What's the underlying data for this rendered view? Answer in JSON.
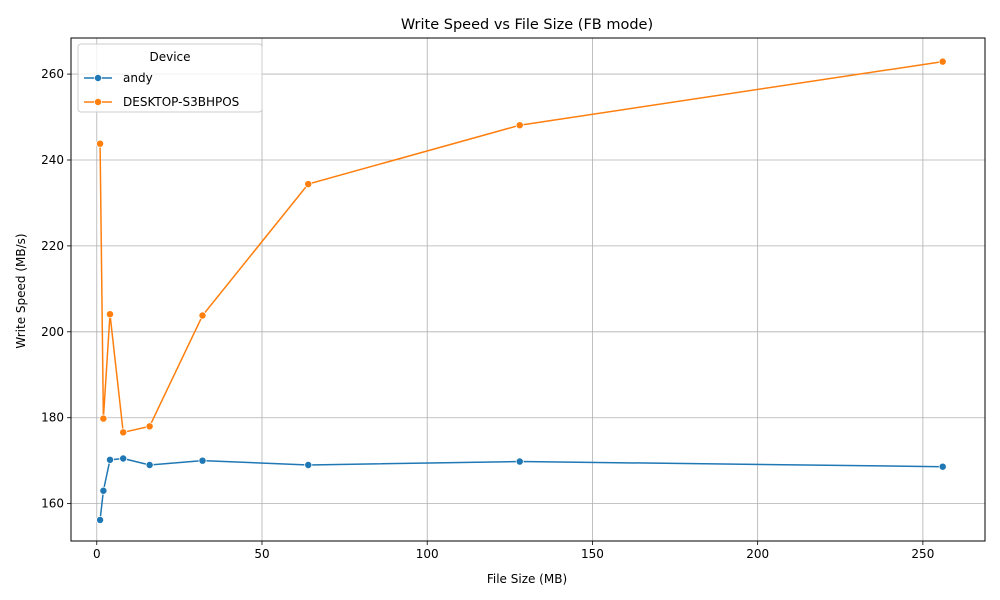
{
  "chart_data": {
    "type": "line",
    "title": "Write Speed vs File Size (FB mode)",
    "xlabel": "File Size (MB)",
    "ylabel": "Write Speed (MB/s)",
    "xlim": [
      -7.8,
      268.8
    ],
    "ylim": [
      151.3,
      268.4
    ],
    "xticks": [
      0,
      50,
      100,
      150,
      200,
      250
    ],
    "yticks": [
      160,
      180,
      200,
      220,
      240,
      260
    ],
    "grid": true,
    "legend": {
      "title": "Device",
      "position": "top-left"
    },
    "series": [
      {
        "name": "andy",
        "color": "#1f77b4",
        "x": [
          1,
          2,
          4,
          8,
          16,
          32,
          64,
          128,
          256
        ],
        "y": [
          156.2,
          163.0,
          170.2,
          170.5,
          169.0,
          170.0,
          169.0,
          169.8,
          168.6
        ]
      },
      {
        "name": "DESKTOP-S3BHPOS",
        "color": "#ff7f0e",
        "x": [
          1,
          2,
          4,
          8,
          16,
          32,
          64,
          128,
          256
        ],
        "y": [
          243.8,
          179.8,
          204.1,
          176.6,
          178.0,
          203.8,
          234.4,
          248.1,
          262.9
        ]
      }
    ]
  }
}
